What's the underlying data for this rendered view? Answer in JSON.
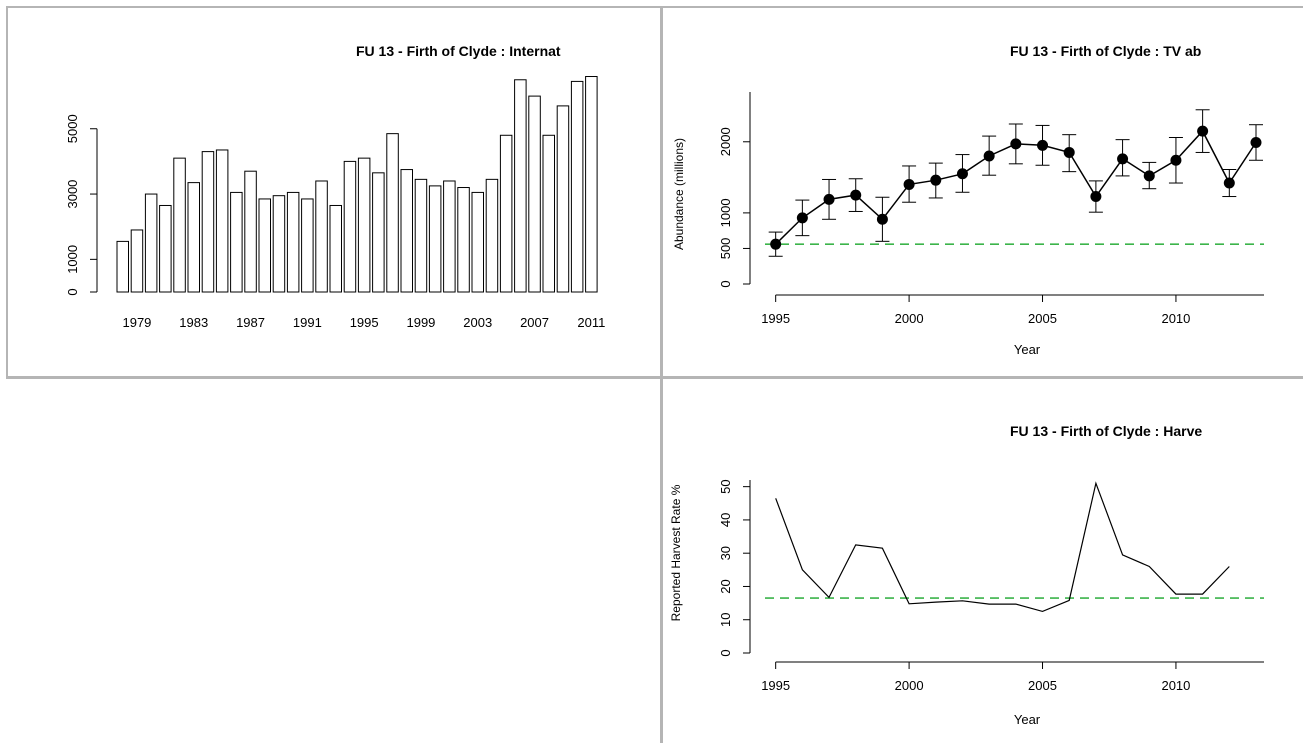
{
  "colors": {
    "background": "#ffffff",
    "divider": "#b5b5b5",
    "bar_fill": "#ffffff",
    "stroke": "#000000",
    "reference_line": "#3cb44b"
  },
  "chart_data": [
    {
      "type": "bar",
      "title": "FU 13 - Firth of Clyde : Internat",
      "xlabel": "",
      "ylabel": "",
      "categories": [
        "1978",
        "1979",
        "1980",
        "1981",
        "1982",
        "1983",
        "1984",
        "1985",
        "1986",
        "1987",
        "1988",
        "1989",
        "1990",
        "1991",
        "1992",
        "1993",
        "1994",
        "1995",
        "1996",
        "1997",
        "1998",
        "1999",
        "2000",
        "2001",
        "2002",
        "2003",
        "2004",
        "2005",
        "2006",
        "2007",
        "2008",
        "2009",
        "2010",
        "2011"
      ],
      "values": [
        1550,
        1900,
        3000,
        2650,
        4100,
        3350,
        4300,
        4350,
        3050,
        3700,
        2850,
        2950,
        3050,
        2850,
        3400,
        2650,
        4000,
        4100,
        3650,
        4850,
        3750,
        3450,
        3250,
        3400,
        3200,
        3050,
        3450,
        4800,
        6500,
        6000,
        4800,
        5700,
        6450,
        6600
      ],
      "x_tick_labels": [
        "1979",
        "1983",
        "1987",
        "1991",
        "1995",
        "1999",
        "2003",
        "2007",
        "2011"
      ],
      "y_ticks": [
        0,
        1000,
        3000,
        5000
      ],
      "y_tick_labels": [
        "0",
        "1000",
        "3000",
        "5000"
      ],
      "ylim": [
        0,
        7000
      ],
      "grid": false
    },
    {
      "type": "line",
      "title": "FU 13 - Firth of Clyde  :  TV ab",
      "xlabel": "Year",
      "ylabel": "Abundance (millions)",
      "x": [
        1995,
        1996,
        1997,
        1998,
        1999,
        2000,
        2001,
        2002,
        2003,
        2004,
        2005,
        2006,
        2007,
        2008,
        2009,
        2010,
        2011,
        2012,
        2013
      ],
      "y": [
        560,
        930,
        1190,
        1250,
        910,
        1400,
        1460,
        1550,
        1800,
        1970,
        1950,
        1850,
        1230,
        1760,
        1520,
        1740,
        2150,
        1420,
        1990
      ],
      "lower": [
        390,
        680,
        910,
        1020,
        600,
        1150,
        1210,
        1290,
        1530,
        1690,
        1670,
        1580,
        1010,
        1520,
        1340,
        1420,
        1850,
        1230,
        1740
      ],
      "upper": [
        730,
        1180,
        1470,
        1480,
        1220,
        1660,
        1700,
        1820,
        2080,
        2250,
        2230,
        2100,
        1450,
        2030,
        1710,
        2060,
        2450,
        1610,
        2240
      ],
      "x_ticks": [
        1995,
        2000,
        2005,
        2010
      ],
      "y_ticks": [
        0,
        500,
        1000,
        2000
      ],
      "y_tick_labels": [
        "0",
        "500",
        "1000",
        "2000"
      ],
      "reference_line": 560,
      "xlim": [
        1994.6,
        2013.3
      ],
      "ylim": [
        0,
        2700
      ],
      "grid": false
    },
    {
      "type": "line",
      "title": "FU 13 - Firth of Clyde  :  Harve",
      "xlabel": "Year",
      "ylabel": "Reported Harvest Rate %",
      "x": [
        1995,
        1996,
        1997,
        1998,
        1999,
        2000,
        2001,
        2002,
        2003,
        2004,
        2005,
        2006,
        2007,
        2008,
        2009,
        2010,
        2011,
        2012
      ],
      "y": [
        46.5,
        25,
        16.7,
        32.5,
        31.5,
        14.8,
        15.3,
        15.7,
        14.7,
        14.7,
        12.5,
        15.8,
        51,
        29.5,
        26,
        17.7,
        17.7,
        26
      ],
      "x_ticks": [
        1995,
        2000,
        2005,
        2010
      ],
      "y_ticks": [
        0,
        10,
        20,
        30,
        40,
        50
      ],
      "y_tick_labels": [
        "0",
        "10",
        "20",
        "30",
        "40",
        "50"
      ],
      "reference_line": 16.5,
      "xlim": [
        1994.6,
        2013.3
      ],
      "ylim": [
        0,
        52
      ],
      "grid": false
    }
  ]
}
